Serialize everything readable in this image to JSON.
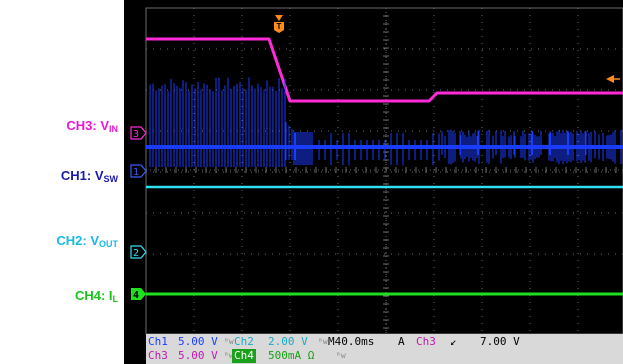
{
  "side_labels": {
    "ch3": {
      "main": "CH3: V",
      "sub": "IN",
      "color": "#e61ad6"
    },
    "ch1": {
      "main": "CH1: V",
      "sub": "SW",
      "color": "#1a1aa6"
    },
    "ch2": {
      "main": "CH2: V",
      "sub": "OUT",
      "color": "#19b9e6"
    },
    "ch4": {
      "main": "CH4: I",
      "sub": "L",
      "color": "#19c419"
    }
  },
  "markers": {
    "trigger": "T",
    "ch3": "3",
    "ch1": "1",
    "ch2": "2",
    "ch4": "4"
  },
  "status": {
    "ch1_name": "Ch1",
    "ch1_scale": "5.00 V",
    "ch2_name": "Ch2",
    "ch2_scale": "2.00 V",
    "timebase": "M40.0ms",
    "trigger_mode": "A",
    "trigger_source": "Ch3",
    "trigger_slope": "↙",
    "trigger_level": "7.00 V",
    "ch3_name": "Ch3",
    "ch3_scale": "5.00 V",
    "ch4_name": "Ch4",
    "ch4_scale": "500mA Ω"
  },
  "colors": {
    "ch1": "#1a3cff",
    "ch2": "#2fe0f0",
    "ch3": "#ff2bd8",
    "ch4": "#1ee01e",
    "trigger": "#ff8c1a",
    "grid": "#6d6d6d"
  }
}
